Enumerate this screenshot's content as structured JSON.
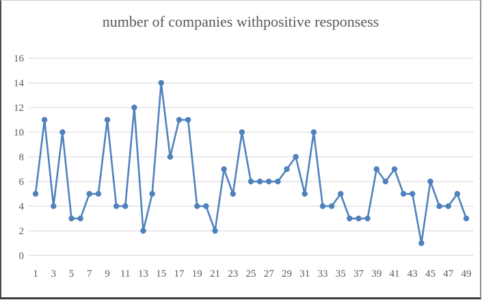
{
  "window": {
    "background_color": "#ffffff",
    "frame_border_colors": {
      "top": "#cfcfcf",
      "right": "#8f8f8f",
      "bottom": "#3f3f3f",
      "left": "#4a4a4a"
    }
  },
  "chart_data": {
    "type": "line",
    "title": "number of companies withpositive responsess",
    "x": [
      1,
      2,
      3,
      4,
      5,
      6,
      7,
      8,
      9,
      10,
      11,
      12,
      13,
      14,
      15,
      16,
      17,
      18,
      19,
      20,
      21,
      22,
      23,
      24,
      25,
      26,
      27,
      28,
      29,
      30,
      31,
      32,
      33,
      34,
      35,
      36,
      37,
      38,
      39,
      40,
      41,
      42,
      43,
      44,
      45,
      46,
      47,
      48,
      49
    ],
    "values": [
      5,
      11,
      4,
      10,
      3,
      3,
      5,
      5,
      11,
      4,
      4,
      12,
      2,
      5,
      14,
      8,
      11,
      11,
      4,
      4,
      2,
      7,
      5,
      10,
      6,
      6,
      6,
      6,
      7,
      8,
      5,
      10,
      4,
      4,
      5,
      3,
      3,
      3,
      7,
      6,
      7,
      5,
      5,
      1,
      6,
      4,
      4,
      5,
      3
    ],
    "xtick_labels": [
      1,
      3,
      5,
      7,
      9,
      11,
      13,
      15,
      17,
      19,
      21,
      23,
      25,
      27,
      29,
      31,
      33,
      35,
      37,
      39,
      41,
      43,
      45,
      47,
      49
    ],
    "ytick_labels": [
      0,
      2,
      4,
      6,
      8,
      10,
      12,
      14,
      16
    ],
    "ylim": [
      0,
      16
    ],
    "xlabel": "",
    "ylabel": "",
    "grid": true,
    "legend_position": "none",
    "marker": "circle",
    "line_color": "#4f81bd",
    "marker_color": "#4f81bd",
    "gridline_color": "#d6d6d6",
    "tick_label_color": "#595959",
    "title_color": "#595959"
  }
}
